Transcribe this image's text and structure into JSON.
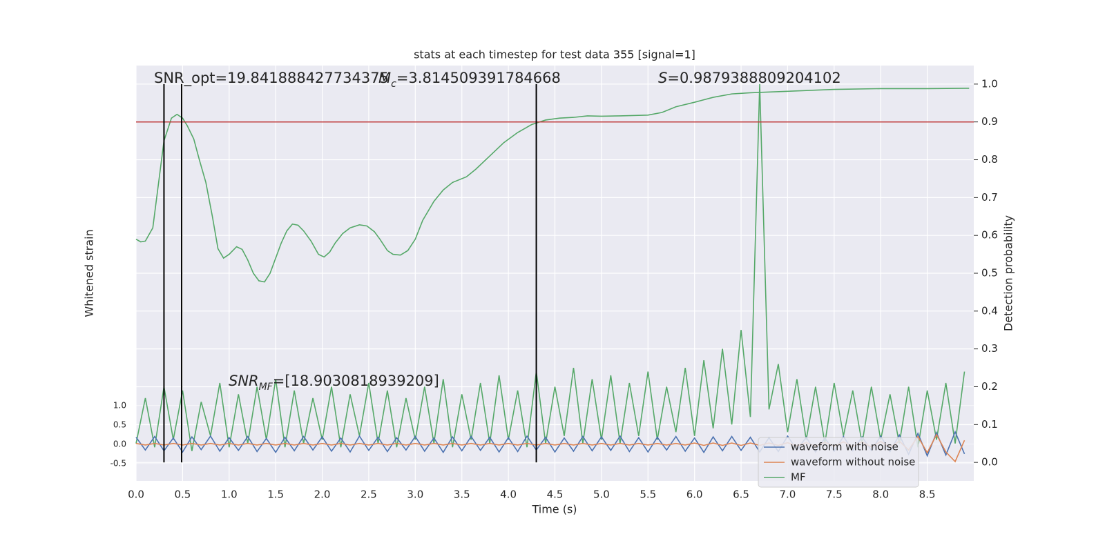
{
  "chart_data": {
    "type": "line",
    "title": "stats at each timestep for test data 355 [signal=1]",
    "x_label": "Time (s)",
    "y_label": "Whitened strain",
    "y2_label": "Detection probability",
    "xlim": [
      0,
      9.0
    ],
    "ylim": [
      -0.95,
      9.8
    ],
    "y2lim": [
      -0.049,
      1.049
    ],
    "xticks": [
      {
        "value": 0,
        "label": "0.0"
      },
      0.5,
      {
        "value": 1,
        "label": "1.0"
      },
      1.5,
      {
        "value": 2,
        "label": "2.0"
      },
      2.5,
      {
        "value": 3,
        "label": "3.0"
      },
      3.5,
      {
        "value": 4,
        "label": "4.0"
      },
      4.5,
      {
        "value": 5,
        "label": "5.0"
      },
      5.5,
      {
        "value": 6,
        "label": "6.0"
      },
      6.5,
      {
        "value": 7,
        "label": "7.0"
      },
      7.5,
      {
        "value": 8,
        "label": "8.0"
      },
      8.5
    ],
    "yticks": [
      {
        "value": -0.5,
        "label": "-0.5"
      },
      {
        "value": 0,
        "label": "0.0"
      },
      0.5,
      {
        "value": 1,
        "label": "1.0"
      }
    ],
    "y2ticks": [
      {
        "value": 0,
        "label": "0.0"
      },
      0.1,
      0.2,
      0.3,
      0.4,
      0.5,
      0.6,
      0.7,
      0.8,
      0.9,
      {
        "value": 1,
        "label": "1.0"
      }
    ],
    "grid": true,
    "legend_location": "lower right",
    "hline": 0.9,
    "hline_color": "#c03d3e",
    "vlines": [
      0.3,
      0.49,
      4.3
    ],
    "vline_color": "#000000",
    "annotations": [
      {
        "parts": [
          {
            "text": "SNR_opt=19.841888427734375"
          }
        ]
      },
      {
        "parts": [
          {
            "text": "M",
            "style": "italic"
          },
          {
            "text": "c",
            "style": "italic-sub"
          },
          {
            "text": "=3.814509391784668"
          }
        ]
      },
      {
        "parts": [
          {
            "text": "S",
            "style": "italic"
          },
          {
            "text": "=0.9879388809204102"
          }
        ]
      },
      {
        "parts": [
          {
            "text": "SNR",
            "style": "italic"
          },
          {
            "text": "MF",
            "style": "italic-sub"
          },
          {
            "text": "=[18.9030818939209]"
          }
        ]
      }
    ],
    "series": [
      {
        "color": "#55a868",
        "axis": "y2",
        "x": [
          0.0,
          0.05,
          0.1,
          0.18,
          0.3,
          0.38,
          0.44,
          0.5,
          0.55,
          0.62,
          0.68,
          0.75,
          0.82,
          0.88,
          0.94,
          1.0,
          1.08,
          1.14,
          1.2,
          1.26,
          1.32,
          1.38,
          1.44,
          1.5,
          1.56,
          1.62,
          1.68,
          1.74,
          1.8,
          1.88,
          1.96,
          2.02,
          2.08,
          2.14,
          2.22,
          2.3,
          2.4,
          2.48,
          2.56,
          2.62,
          2.7,
          2.76,
          2.84,
          2.92,
          3.0,
          3.08,
          3.2,
          3.3,
          3.4,
          3.55,
          3.65,
          3.8,
          3.95,
          4.1,
          4.25,
          4.4,
          4.55,
          4.7,
          4.85,
          5.0,
          5.2,
          5.5,
          5.65,
          5.8,
          6.0,
          6.2,
          6.4,
          6.6,
          7.0,
          7.5,
          8.0,
          8.5,
          8.95
        ],
        "values": [
          0.59,
          0.583,
          0.585,
          0.62,
          0.85,
          0.91,
          0.92,
          0.91,
          0.89,
          0.855,
          0.8,
          0.74,
          0.65,
          0.565,
          0.54,
          0.55,
          0.57,
          0.563,
          0.535,
          0.5,
          0.48,
          0.477,
          0.5,
          0.54,
          0.58,
          0.612,
          0.63,
          0.627,
          0.612,
          0.585,
          0.55,
          0.543,
          0.556,
          0.58,
          0.605,
          0.62,
          0.628,
          0.625,
          0.61,
          0.59,
          0.56,
          0.55,
          0.548,
          0.56,
          0.59,
          0.64,
          0.69,
          0.72,
          0.74,
          0.755,
          0.775,
          0.81,
          0.845,
          0.872,
          0.893,
          0.905,
          0.91,
          0.912,
          0.916,
          0.915,
          0.916,
          0.918,
          0.925,
          0.94,
          0.952,
          0.965,
          0.974,
          0.977,
          0.981,
          0.986,
          0.988,
          0.988,
          0.989
        ]
      },
      {
        "name": "MF",
        "color": "#55a868",
        "axis": "y2",
        "x": [
          0.0,
          0.1,
          0.2,
          0.3,
          0.4,
          0.5,
          0.6,
          0.7,
          0.8,
          0.9,
          1.0,
          1.1,
          1.2,
          1.3,
          1.4,
          1.5,
          1.6,
          1.7,
          1.8,
          1.9,
          2.0,
          2.1,
          2.2,
          2.3,
          2.4,
          2.5,
          2.6,
          2.7,
          2.8,
          2.9,
          3.0,
          3.1,
          3.2,
          3.3,
          3.4,
          3.5,
          3.6,
          3.7,
          3.8,
          3.9,
          4.0,
          4.1,
          4.2,
          4.3,
          4.4,
          4.5,
          4.6,
          4.7,
          4.8,
          4.9,
          5.0,
          5.1,
          5.2,
          5.3,
          5.4,
          5.5,
          5.6,
          5.7,
          5.8,
          5.9,
          6.0,
          6.1,
          6.2,
          6.3,
          6.4,
          6.5,
          6.6,
          6.7,
          6.8,
          6.9,
          7.0,
          7.1,
          7.2,
          7.3,
          7.4,
          7.5,
          7.6,
          7.7,
          7.8,
          7.9,
          8.0,
          8.1,
          8.2,
          8.3,
          8.4,
          8.5,
          8.6,
          8.7,
          8.8,
          8.9
        ],
        "values": [
          0.05,
          0.17,
          0.04,
          0.2,
          0.06,
          0.19,
          0.03,
          0.16,
          0.07,
          0.21,
          0.04,
          0.18,
          0.05,
          0.2,
          0.06,
          0.22,
          0.04,
          0.19,
          0.05,
          0.17,
          0.06,
          0.2,
          0.04,
          0.18,
          0.07,
          0.21,
          0.05,
          0.19,
          0.04,
          0.17,
          0.06,
          0.2,
          0.05,
          0.22,
          0.04,
          0.18,
          0.06,
          0.21,
          0.05,
          0.23,
          0.06,
          0.19,
          0.04,
          0.24,
          0.05,
          0.2,
          0.07,
          0.25,
          0.05,
          0.22,
          0.06,
          0.23,
          0.05,
          0.21,
          0.07,
          0.24,
          0.06,
          0.2,
          0.08,
          0.25,
          0.07,
          0.27,
          0.09,
          0.3,
          0.1,
          0.35,
          0.12,
          1.0,
          0.14,
          0.26,
          0.08,
          0.22,
          0.06,
          0.2,
          0.05,
          0.21,
          0.07,
          0.19,
          0.05,
          0.2,
          0.06,
          0.18,
          0.05,
          0.2,
          0.04,
          0.19,
          0.06,
          0.21,
          0.05,
          0.24
        ]
      },
      {
        "name": "waveform with noise",
        "color": "#4c72b0",
        "x": [
          0.0,
          0.1,
          0.2,
          0.3,
          0.4,
          0.5,
          0.6,
          0.7,
          0.8,
          0.9,
          1.0,
          1.1,
          1.2,
          1.3,
          1.4,
          1.5,
          1.6,
          1.7,
          1.8,
          1.9,
          2.0,
          2.1,
          2.2,
          2.3,
          2.4,
          2.5,
          2.6,
          2.7,
          2.8,
          2.9,
          3.0,
          3.1,
          3.2,
          3.3,
          3.4,
          3.5,
          3.6,
          3.7,
          3.8,
          3.9,
          4.0,
          4.1,
          4.2,
          4.3,
          4.4,
          4.5,
          4.6,
          4.7,
          4.8,
          4.9,
          5.0,
          5.1,
          5.2,
          5.3,
          5.4,
          5.5,
          5.6,
          5.7,
          5.8,
          5.9,
          6.0,
          6.1,
          6.2,
          6.3,
          6.4,
          6.5,
          6.6,
          6.7,
          6.8,
          6.9,
          7.0,
          7.1,
          7.2,
          7.3,
          7.4,
          7.5,
          7.6,
          7.7,
          7.8,
          7.9,
          8.0,
          8.1,
          8.2,
          8.3,
          8.4,
          8.5,
          8.6,
          8.7,
          8.8,
          8.9
        ],
        "values": [
          0.18,
          -0.15,
          0.2,
          -0.17,
          0.16,
          -0.2,
          0.19,
          -0.14,
          0.21,
          -0.18,
          0.17,
          -0.16,
          0.2,
          -0.19,
          0.15,
          -0.21,
          0.18,
          -0.17,
          0.2,
          -0.15,
          0.19,
          -0.18,
          0.16,
          -0.2,
          0.21,
          -0.16,
          0.18,
          -0.19,
          0.17,
          -0.15,
          0.2,
          -0.18,
          0.16,
          -0.21,
          0.19,
          -0.17,
          0.2,
          -0.16,
          0.18,
          -0.2,
          0.17,
          -0.19,
          0.21,
          -0.15,
          0.18,
          -0.2,
          0.16,
          -0.18,
          0.2,
          -0.17,
          0.19,
          -0.16,
          0.21,
          -0.19,
          0.17,
          -0.2,
          0.18,
          -0.15,
          0.2,
          -0.18,
          0.16,
          -0.21,
          0.19,
          -0.17,
          0.2,
          -0.16,
          0.18,
          -0.2,
          0.17,
          -0.19,
          0.21,
          -0.15,
          0.18,
          -0.2,
          0.16,
          -0.18,
          0.2,
          -0.17,
          0.19,
          -0.16,
          0.21,
          -0.19,
          0.24,
          -0.26,
          0.28,
          -0.3,
          0.3,
          -0.28,
          0.32,
          -0.25
        ]
      },
      {
        "name": "waveform without noise",
        "color": "#dd8452",
        "x": [
          0.0,
          0.1,
          0.2,
          0.3,
          0.4,
          0.5,
          0.6,
          0.7,
          0.8,
          0.9,
          1.0,
          1.1,
          1.2,
          1.3,
          1.4,
          1.5,
          1.6,
          1.7,
          1.8,
          1.9,
          2.0,
          2.1,
          2.2,
          2.3,
          2.4,
          2.5,
          2.6,
          2.7,
          2.8,
          2.9,
          3.0,
          3.1,
          3.2,
          3.3,
          3.4,
          3.5,
          3.6,
          3.7,
          3.8,
          3.9,
          4.0,
          4.1,
          4.2,
          4.3,
          4.4,
          4.5,
          4.6,
          4.7,
          4.8,
          4.9,
          5.0,
          5.1,
          5.2,
          5.3,
          5.4,
          5.5,
          5.6,
          5.7,
          5.8,
          5.9,
          6.0,
          6.1,
          6.2,
          6.3,
          6.4,
          6.5,
          6.6,
          6.7,
          6.8,
          6.9,
          7.0,
          7.1,
          7.2,
          7.3,
          7.4,
          7.5,
          7.6,
          7.7,
          7.8,
          7.9,
          8.0,
          8.1,
          8.2,
          8.3,
          8.4,
          8.5,
          8.6,
          8.7,
          8.8,
          8.9
        ],
        "values": [
          0.02,
          -0.02,
          0.02,
          -0.02,
          0.02,
          -0.02,
          0.02,
          -0.02,
          0.02,
          -0.02,
          0.02,
          -0.02,
          0.02,
          -0.02,
          0.02,
          -0.02,
          0.02,
          -0.02,
          0.02,
          -0.02,
          0.02,
          -0.02,
          0.02,
          -0.02,
          0.02,
          -0.02,
          0.02,
          -0.02,
          0.02,
          -0.02,
          0.02,
          -0.02,
          0.02,
          -0.02,
          0.02,
          -0.02,
          0.02,
          -0.02,
          0.02,
          -0.02,
          0.02,
          -0.02,
          0.02,
          -0.02,
          0.02,
          -0.02,
          0.02,
          -0.02,
          0.02,
          -0.02,
          0.02,
          -0.02,
          0.02,
          -0.02,
          0.02,
          -0.02,
          0.02,
          -0.02,
          0.02,
          -0.02,
          0.03,
          -0.03,
          0.03,
          -0.03,
          0.03,
          -0.03,
          0.03,
          -0.03,
          0.03,
          -0.03,
          0.04,
          -0.04,
          0.04,
          -0.05,
          0.05,
          -0.05,
          0.06,
          -0.06,
          0.06,
          -0.07,
          0.07,
          -0.08,
          0.08,
          -0.15,
          0.2,
          -0.22,
          0.25,
          -0.2,
          -0.45,
          0.1
        ]
      }
    ]
  }
}
